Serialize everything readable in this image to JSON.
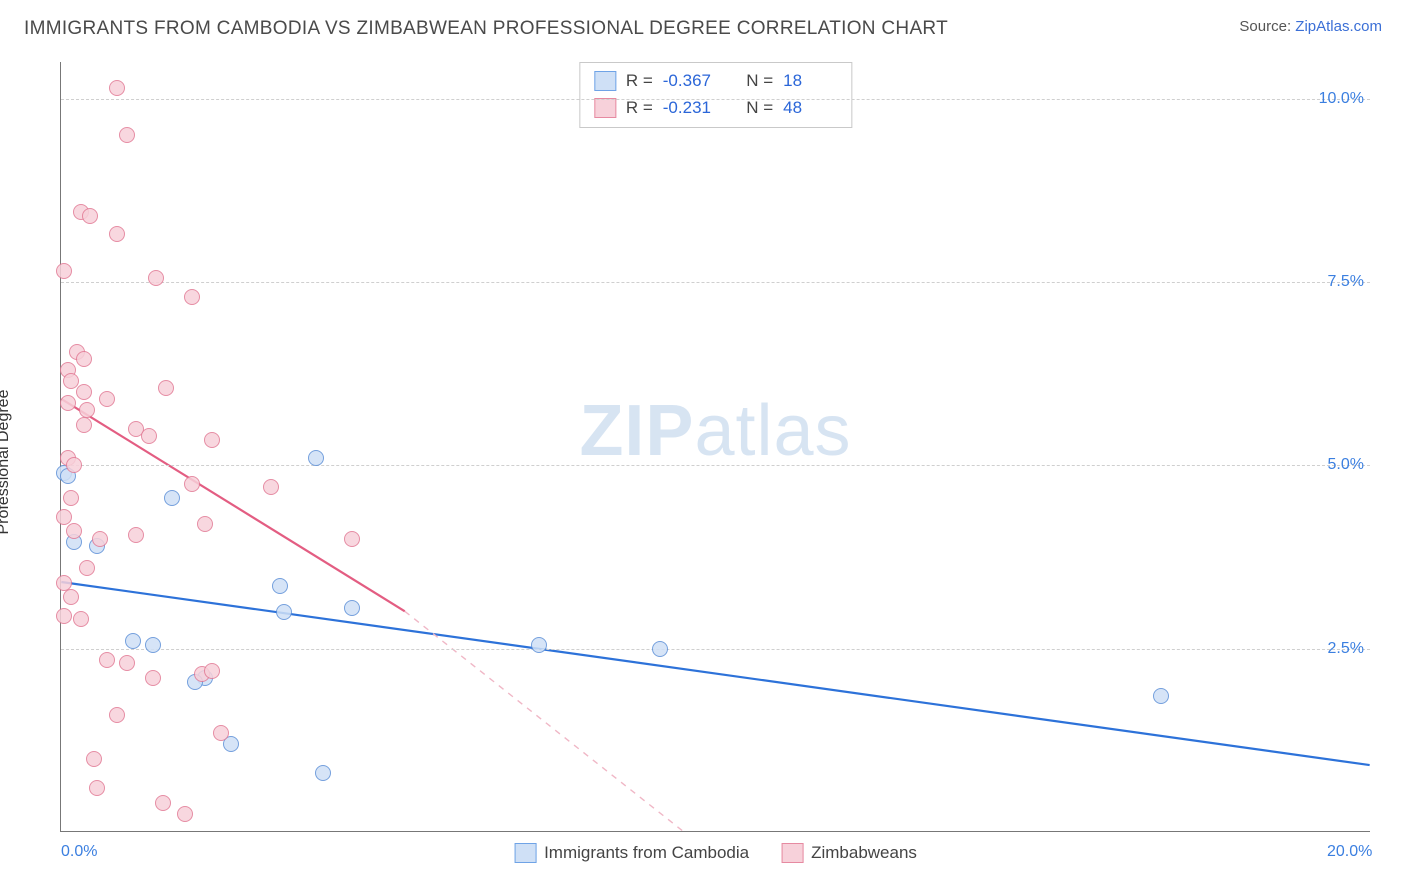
{
  "header": {
    "title": "IMMIGRANTS FROM CAMBODIA VS ZIMBABWEAN PROFESSIONAL DEGREE CORRELATION CHART",
    "source_label": "Source:",
    "source_name": "ZipAtlas.com"
  },
  "chart": {
    "type": "scatter",
    "xlim": [
      0,
      20
    ],
    "ylim": [
      0,
      10.5
    ],
    "x_ticks": [
      {
        "v": 0,
        "label": "0.0%"
      },
      {
        "v": 20,
        "label": "20.0%"
      }
    ],
    "y_ticks": [
      {
        "v": 2.5,
        "label": "2.5%"
      },
      {
        "v": 5.0,
        "label": "5.0%"
      },
      {
        "v": 7.5,
        "label": "7.5%"
      },
      {
        "v": 10.0,
        "label": "10.0%"
      }
    ],
    "y_label": "Professional Degree",
    "grid_color": "#d4d4d4",
    "axis_color": "#777777",
    "background_color": "#ffffff",
    "watermark": {
      "prefix": "ZIP",
      "suffix": "atlas",
      "color": "#b8cfe8",
      "fontsize": 72
    },
    "r_legend": [
      {
        "swatch_fill": "#cfe0f6",
        "swatch_stroke": "#6fa3e6",
        "r": "-0.367",
        "n": "18"
      },
      {
        "swatch_fill": "#f7d1da",
        "swatch_stroke": "#e68aa1",
        "r": "-0.231",
        "n": "48"
      }
    ],
    "bottom_legend": [
      {
        "swatch_fill": "#cfe0f6",
        "swatch_stroke": "#6fa3e6",
        "label": "Immigrants from Cambodia"
      },
      {
        "swatch_fill": "#f7d1da",
        "swatch_stroke": "#e68aa1",
        "label": "Zimbabweans"
      }
    ],
    "series": [
      {
        "name": "cambodia",
        "point_fill": "#cfe0f6",
        "point_stroke": "#5d90d8",
        "line_color": "#2d72d9",
        "line_width": 2.2,
        "trend": {
          "x1": 0,
          "y1": 3.4,
          "x2": 20,
          "y2": 0.9,
          "dash": false
        },
        "points": [
          {
            "x": 0.05,
            "y": 4.9
          },
          {
            "x": 0.1,
            "y": 4.85
          },
          {
            "x": 0.2,
            "y": 3.95
          },
          {
            "x": 0.55,
            "y": 3.9
          },
          {
            "x": 1.7,
            "y": 4.55
          },
          {
            "x": 1.1,
            "y": 2.6
          },
          {
            "x": 1.4,
            "y": 2.55
          },
          {
            "x": 2.2,
            "y": 2.1
          },
          {
            "x": 2.05,
            "y": 2.05
          },
          {
            "x": 2.6,
            "y": 1.2
          },
          {
            "x": 3.35,
            "y": 3.35
          },
          {
            "x": 3.4,
            "y": 3.0
          },
          {
            "x": 3.9,
            "y": 5.1
          },
          {
            "x": 4.45,
            "y": 3.05
          },
          {
            "x": 4.0,
            "y": 0.8
          },
          {
            "x": 7.3,
            "y": 2.55
          },
          {
            "x": 9.15,
            "y": 2.5
          },
          {
            "x": 16.8,
            "y": 1.85
          }
        ]
      },
      {
        "name": "zimbabwe",
        "point_fill": "#f7d1da",
        "point_stroke": "#e27a95",
        "line_color": "#e35d82",
        "line_width": 2.2,
        "trend_solid": {
          "x1": 0,
          "y1": 5.9,
          "x2": 5.25,
          "y2": 3.0
        },
        "trend_dash": {
          "x1": 5.25,
          "y1": 3.0,
          "x2": 9.5,
          "y2": 0.0
        },
        "points": [
          {
            "x": 0.85,
            "y": 10.15
          },
          {
            "x": 1.0,
            "y": 9.5
          },
          {
            "x": 0.3,
            "y": 8.45
          },
          {
            "x": 0.45,
            "y": 8.4
          },
          {
            "x": 0.85,
            "y": 8.15
          },
          {
            "x": 1.45,
            "y": 7.55
          },
          {
            "x": 0.05,
            "y": 7.65
          },
          {
            "x": 0.25,
            "y": 6.55
          },
          {
            "x": 0.35,
            "y": 6.45
          },
          {
            "x": 0.1,
            "y": 6.3
          },
          {
            "x": 0.15,
            "y": 6.15
          },
          {
            "x": 0.35,
            "y": 6.0
          },
          {
            "x": 0.1,
            "y": 5.85
          },
          {
            "x": 0.4,
            "y": 5.75
          },
          {
            "x": 0.35,
            "y": 5.55
          },
          {
            "x": 1.6,
            "y": 6.05
          },
          {
            "x": 2.0,
            "y": 7.3
          },
          {
            "x": 1.15,
            "y": 5.5
          },
          {
            "x": 0.1,
            "y": 5.1
          },
          {
            "x": 0.2,
            "y": 5.0
          },
          {
            "x": 1.35,
            "y": 5.4
          },
          {
            "x": 2.3,
            "y": 5.35
          },
          {
            "x": 2.0,
            "y": 4.75
          },
          {
            "x": 3.2,
            "y": 4.7
          },
          {
            "x": 2.2,
            "y": 4.2
          },
          {
            "x": 0.05,
            "y": 4.3
          },
          {
            "x": 0.2,
            "y": 4.1
          },
          {
            "x": 0.6,
            "y": 4.0
          },
          {
            "x": 1.15,
            "y": 4.05
          },
          {
            "x": 0.05,
            "y": 3.4
          },
          {
            "x": 0.15,
            "y": 3.2
          },
          {
            "x": 0.7,
            "y": 2.35
          },
          {
            "x": 1.0,
            "y": 2.3
          },
          {
            "x": 1.4,
            "y": 2.1
          },
          {
            "x": 2.15,
            "y": 2.15
          },
          {
            "x": 2.3,
            "y": 2.2
          },
          {
            "x": 4.45,
            "y": 4.0
          },
          {
            "x": 0.85,
            "y": 1.6
          },
          {
            "x": 2.45,
            "y": 1.35
          },
          {
            "x": 0.5,
            "y": 1.0
          },
          {
            "x": 1.55,
            "y": 0.4
          },
          {
            "x": 0.55,
            "y": 0.6
          },
          {
            "x": 1.9,
            "y": 0.25
          },
          {
            "x": 0.3,
            "y": 2.9
          },
          {
            "x": 0.05,
            "y": 2.95
          },
          {
            "x": 0.4,
            "y": 3.6
          },
          {
            "x": 0.15,
            "y": 4.55
          },
          {
            "x": 0.7,
            "y": 5.9
          }
        ]
      }
    ]
  }
}
